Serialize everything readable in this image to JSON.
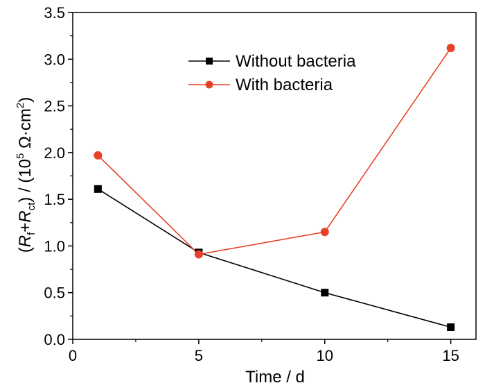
{
  "chart_data": {
    "type": "line",
    "x": [
      1,
      5,
      10,
      15
    ],
    "series": [
      {
        "name": "Without bacteria",
        "values": [
          1.61,
          0.93,
          0.5,
          0.13
        ],
        "color": "#000000",
        "marker": "square"
      },
      {
        "name": "With bacteria",
        "values": [
          1.97,
          0.91,
          1.15,
          3.12
        ],
        "color": "#e8412a",
        "marker": "circle"
      }
    ],
    "xlabel": "Time / d",
    "ylabel": {
      "open": "(",
      "r1": "R",
      "r1_sub": "f",
      "plus": "+",
      "r2": "R",
      "r2_sub": "ct",
      "mid": ") / (10",
      "exp": "5",
      "unit": " Ω·cm",
      "unit_exp": "2",
      "close": ")"
    },
    "xlim": [
      0,
      16
    ],
    "ylim": [
      0,
      3.5
    ],
    "xticks": [
      "0",
      "5",
      "10",
      "15"
    ],
    "xtick_values": [
      0,
      5,
      10,
      15
    ],
    "yticks": [
      "0.0",
      "0.5",
      "1.0",
      "1.5",
      "2.0",
      "2.5",
      "3.0",
      "3.5"
    ],
    "ytick_values": [
      0,
      0.5,
      1.0,
      1.5,
      2.0,
      2.5,
      3.0,
      3.5
    ],
    "grid": false,
    "legend_position": "top-center"
  }
}
